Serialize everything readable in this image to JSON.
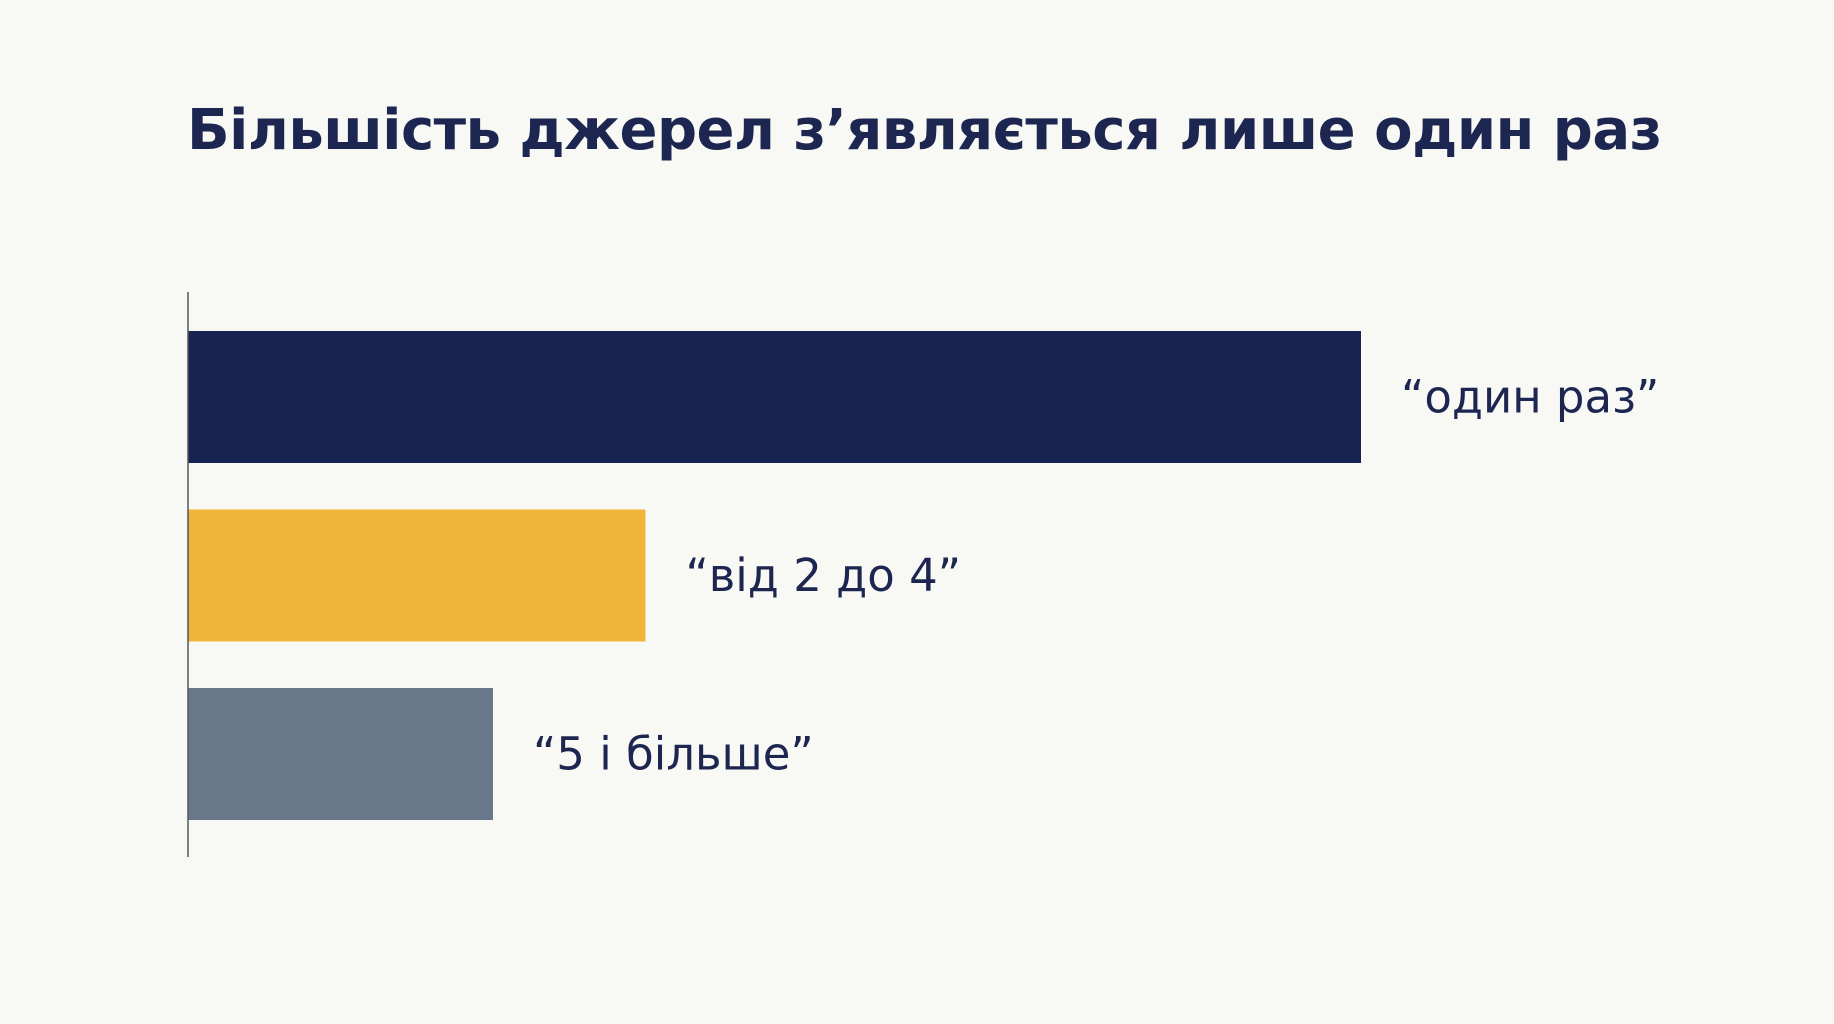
{
  "chart_data": {
    "type": "bar",
    "orientation": "horizontal",
    "title": "Більшість джерел з’являється лише один раз",
    "categories": [
      "“один раз”",
      "“від 2 до 4”",
      "“5 і більше”"
    ],
    "values": [
      100,
      39,
      26
    ],
    "value_unit": "relative share (scale not printed)",
    "xlim": [
      0,
      100
    ],
    "axis_labels_shown": false,
    "grid": false,
    "legend": "none",
    "colors": [
      "#172452",
      "#f0b43a",
      "#687789"
    ],
    "label_color": "#1c2650",
    "axis_color": "#555555",
    "background": "#f8f8f4"
  }
}
